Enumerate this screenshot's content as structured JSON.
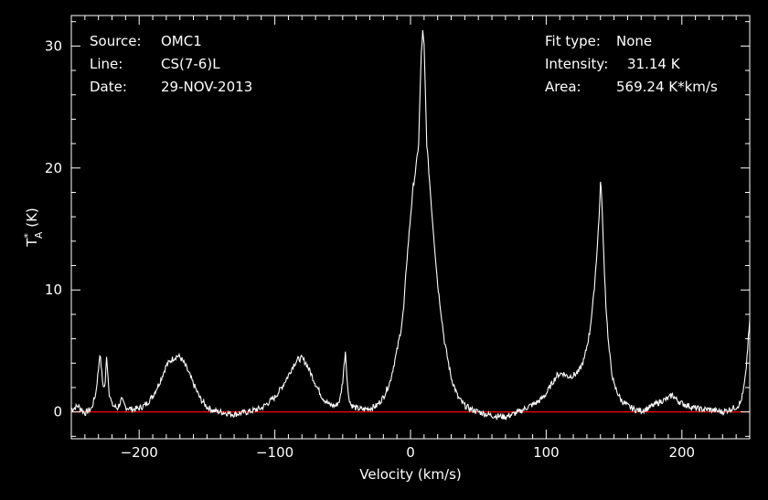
{
  "header": {
    "left": [
      {
        "key": "Source:",
        "value": "OMC1"
      },
      {
        "key": "Line:",
        "value": "CS(7-6)L"
      },
      {
        "key": "Date:",
        "value": "29-NOV-2013"
      }
    ],
    "right": [
      {
        "key": "Fit type:",
        "value": "None"
      },
      {
        "key": "Intensity:",
        "value": "31.14 K"
      },
      {
        "key": "Area:",
        "value": "569.24 K*km/s"
      }
    ]
  },
  "colors": {
    "background": "#000000",
    "axes": "#ffffff",
    "spectrum": "#ffffff",
    "baseline": "#ff0000"
  },
  "chart_data": {
    "type": "line",
    "title": "",
    "xlabel": "Velocity (km/s)",
    "ylabel_main": "T",
    "ylabel_sup": "*",
    "ylabel_sub": "A",
    "ylabel_unit": " (K)",
    "xlim": [
      -250,
      250
    ],
    "ylim": [
      -2.2,
      32.5
    ],
    "xticks": [
      -200,
      -100,
      0,
      100,
      200
    ],
    "yticks": [
      0,
      10,
      20,
      30
    ],
    "baseline_y": 0,
    "grid": false,
    "series": [
      {
        "x": [
          -250,
          -245,
          -240,
          -235,
          -232,
          -230,
          -229,
          -228,
          -227,
          -226,
          -225,
          -224,
          -223,
          -222,
          -220,
          -216,
          -213,
          -210,
          -205,
          -200,
          -195,
          -190,
          -185,
          -180,
          -176,
          -172,
          -170,
          -168,
          -165,
          -160,
          -155,
          -150,
          -145,
          -140,
          -130,
          -120,
          -110,
          -100,
          -95,
          -90,
          -86,
          -83,
          -80,
          -77,
          -74,
          -70,
          -65,
          -60,
          -55,
          -52,
          -50,
          -48,
          -46,
          -44,
          -40,
          -35,
          -30,
          -25,
          -20,
          -15,
          -10,
          -7,
          -5,
          -3,
          0,
          2,
          4,
          6,
          7,
          8,
          9,
          10,
          11,
          12,
          14,
          16,
          20,
          25,
          30,
          35,
          40,
          45,
          50,
          60,
          70,
          80,
          88,
          92,
          96,
          100,
          104,
          108,
          112,
          116,
          120,
          124,
          128,
          132,
          135,
          137,
          139,
          140,
          141,
          142,
          144,
          146,
          148,
          150,
          155,
          160,
          165,
          170,
          175,
          180,
          185,
          190,
          193,
          196,
          200,
          205,
          210,
          215,
          220,
          225,
          230,
          235,
          240,
          243,
          245,
          247,
          248,
          249,
          250
        ],
        "values": [
          0.2,
          0.5,
          -0.1,
          0.3,
          1.5,
          3.5,
          4.8,
          3.8,
          2.5,
          2.0,
          2.3,
          4.7,
          3.0,
          1.5,
          0.6,
          0.3,
          1.0,
          0.4,
          0.2,
          0.3,
          0.6,
          1.3,
          2.4,
          3.8,
          4.3,
          4.6,
          4.5,
          4.2,
          3.6,
          2.3,
          1.1,
          0.4,
          0.1,
          0.0,
          -0.2,
          0.0,
          0.3,
          1.2,
          2.0,
          3.0,
          3.9,
          4.3,
          4.4,
          4.0,
          3.3,
          2.3,
          1.2,
          0.6,
          0.5,
          1.0,
          2.5,
          5.0,
          1.5,
          0.6,
          0.3,
          0.2,
          0.3,
          0.5,
          1.2,
          2.5,
          5.0,
          6.8,
          8.5,
          12.0,
          16.0,
          18.5,
          20.0,
          22.0,
          26.0,
          29.5,
          31.14,
          30.0,
          26.0,
          22.0,
          19.0,
          16.0,
          10.5,
          5.8,
          2.8,
          1.2,
          0.5,
          0.2,
          0.0,
          -0.3,
          -0.4,
          0.0,
          0.5,
          0.7,
          1.0,
          1.5,
          2.3,
          3.0,
          3.2,
          2.9,
          3.0,
          3.3,
          4.3,
          6.5,
          9.5,
          12.5,
          16.0,
          18.8,
          17.5,
          14.0,
          8.8,
          5.5,
          3.5,
          2.2,
          1.0,
          0.5,
          0.2,
          0.1,
          0.3,
          0.6,
          0.9,
          1.1,
          1.4,
          1.0,
          0.7,
          0.5,
          0.3,
          0.2,
          0.2,
          0.1,
          0.0,
          0.2,
          0.4,
          0.7,
          1.5,
          3.0,
          4.5,
          6.0,
          7.5
        ]
      }
    ]
  }
}
